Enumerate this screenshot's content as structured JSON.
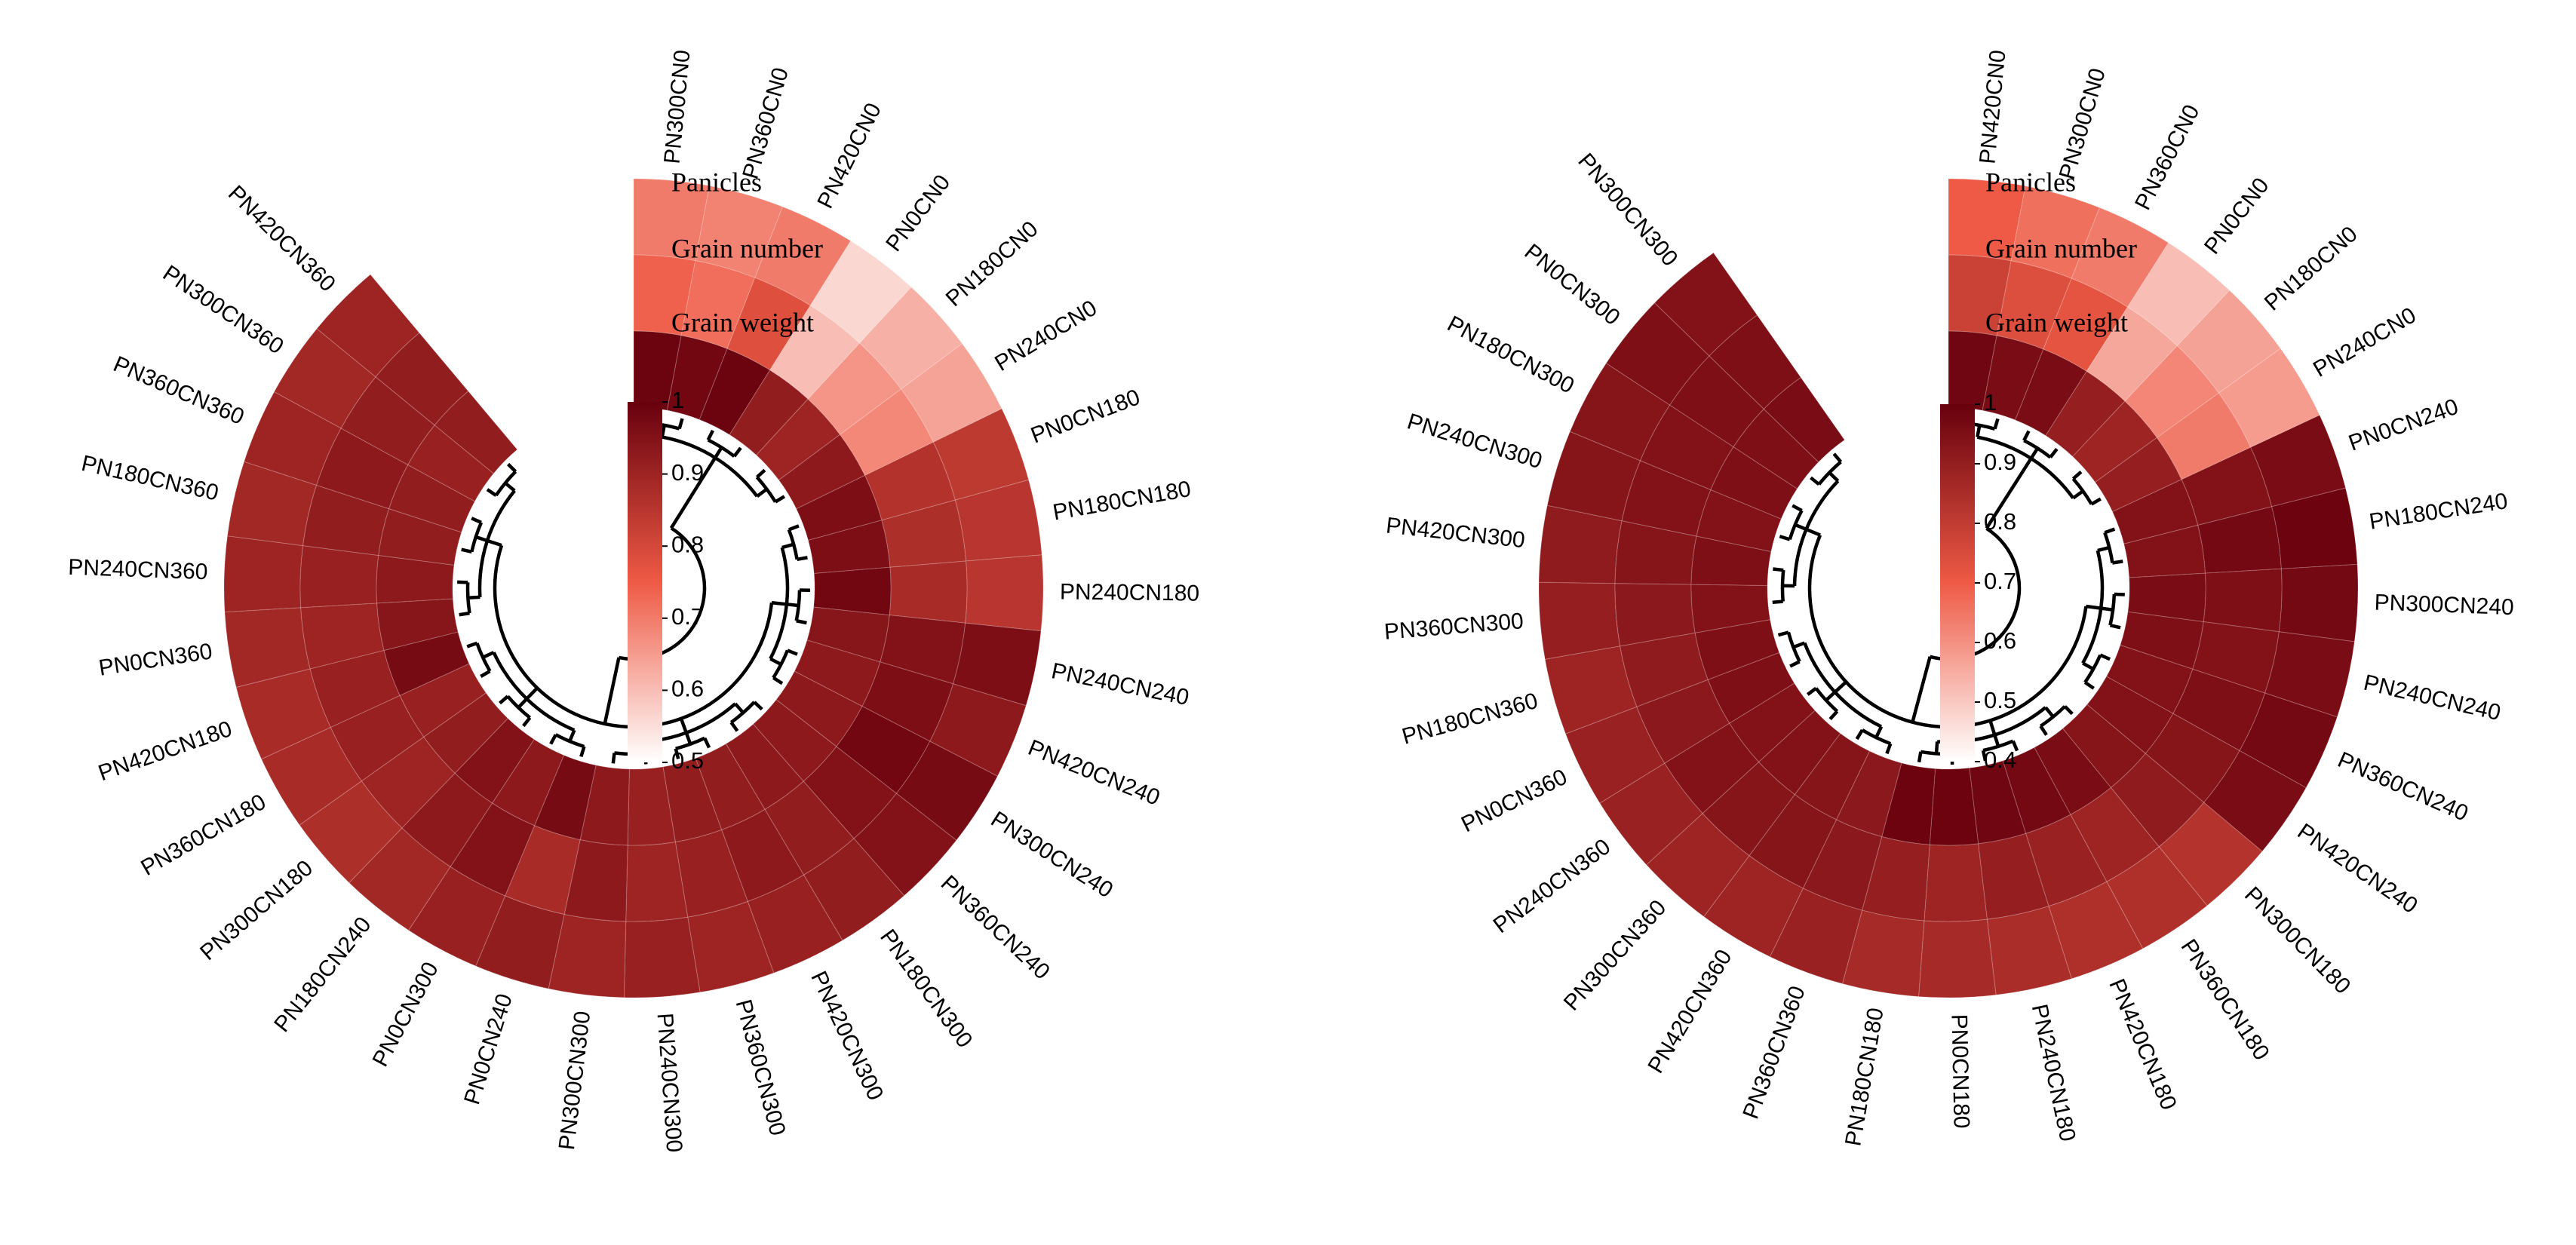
{
  "tracks": [
    "Panicles",
    "Grain number",
    "Grain weight"
  ],
  "colors": {
    "low": "#ffffff",
    "mid": "#ee5a45",
    "high": "#67000d"
  },
  "chart_data": [
    {
      "type": "heatmap",
      "subtype": "circular",
      "title": "",
      "legend": {
        "min": 0.5,
        "max": 1,
        "ticks": [
          "0.5",
          "0.6",
          "0.7",
          "0.8",
          "0.9",
          "1"
        ]
      },
      "samples": [
        "PN300CN0",
        "PN360CN0",
        "PN420CN0",
        "PN0CN0",
        "PN180CN0",
        "PN240CN0",
        "PN0CN180",
        "PN180CN180",
        "PN240CN180",
        "PN240CN240",
        "PN420CN240",
        "PN300CN240",
        "PN360CN240",
        "PN180CN300",
        "PN420CN300",
        "PN360CN300",
        "PN240CN300",
        "PN300CN300",
        "PN0CN240",
        "PN0CN300",
        "PN180CN240",
        "PN300CN180",
        "PN360CN180",
        "PN420CN180",
        "PN0CN360",
        "PN240CN360",
        "PN180CN360",
        "PN360CN360",
        "PN300CN360",
        "PN420CN360"
      ],
      "series": [
        {
          "name": "Panicles",
          "values": [
            0.7,
            0.69,
            0.7,
            0.56,
            0.62,
            0.64,
            0.84,
            0.85,
            0.85,
            0.96,
            0.93,
            0.97,
            0.95,
            0.92,
            0.91,
            0.9,
            0.91,
            0.9,
            0.92,
            0.91,
            0.89,
            0.87,
            0.88,
            0.88,
            0.89,
            0.9,
            0.89,
            0.9,
            0.89,
            0.9
          ]
        },
        {
          "name": "Grain number",
          "values": [
            0.74,
            0.72,
            0.78,
            0.6,
            0.66,
            0.68,
            0.86,
            0.87,
            0.88,
            0.95,
            0.96,
            0.98,
            0.95,
            0.92,
            0.93,
            0.91,
            0.9,
            0.93,
            0.88,
            0.95,
            0.93,
            0.9,
            0.91,
            0.91,
            0.9,
            0.91,
            0.92,
            0.93,
            0.92,
            0.92
          ]
        },
        {
          "name": "Grain weight",
          "values": [
            0.99,
            0.98,
            0.99,
            0.92,
            0.9,
            0.93,
            0.96,
            0.96,
            0.98,
            0.94,
            0.93,
            0.93,
            0.93,
            0.93,
            0.92,
            0.92,
            0.91,
            0.93,
            0.97,
            0.93,
            0.95,
            0.92,
            0.91,
            0.97,
            0.94,
            0.93,
            0.92,
            0.92,
            0.91,
            0.92
          ]
        }
      ]
    },
    {
      "type": "heatmap",
      "subtype": "circular",
      "title": "",
      "legend": {
        "min": 0.4,
        "max": 1,
        "ticks": [
          "0.4",
          "0.5",
          "0.6",
          "0.7",
          "0.8",
          "0.9",
          "1"
        ]
      },
      "samples": [
        "PN420CN0",
        "PN300CN0",
        "PN360CN0",
        "PN0CN0",
        "PN180CN0",
        "PN240CN0",
        "PN0CN240",
        "PN180CN240",
        "PN300CN240",
        "PN240CN240",
        "PN360CN240",
        "PN420CN240",
        "PN300CN180",
        "PN360CN180",
        "PN420CN180",
        "PN240CN180",
        "PN0CN180",
        "PN180CN180",
        "PN360CN360",
        "PN420CN360",
        "PN300CN360",
        "PN240CN360",
        "PN0CN360",
        "PN180CN360",
        "PN360CN300",
        "PN420CN300",
        "PN240CN300",
        "PN180CN300",
        "PN0CN300",
        "PN300CN300"
      ],
      "series": [
        {
          "name": "Panicles",
          "values": [
            0.7,
            0.66,
            0.64,
            0.52,
            0.57,
            0.58,
            0.96,
            0.99,
            0.97,
            0.96,
            0.97,
            0.96,
            0.83,
            0.84,
            0.84,
            0.85,
            0.86,
            0.86,
            0.89,
            0.88,
            0.88,
            0.89,
            0.89,
            0.88,
            0.9,
            0.91,
            0.93,
            0.93,
            0.95,
            0.94
          ]
        },
        {
          "name": "Grain number",
          "values": [
            0.78,
            0.74,
            0.72,
            0.56,
            0.62,
            0.64,
            0.94,
            0.97,
            0.95,
            0.94,
            0.95,
            0.93,
            0.91,
            0.88,
            0.89,
            0.9,
            0.88,
            0.9,
            0.92,
            0.93,
            0.93,
            0.94,
            0.92,
            0.91,
            0.92,
            0.93,
            0.94,
            0.94,
            0.95,
            0.95
          ]
        },
        {
          "name": "Grain weight",
          "values": [
            0.98,
            0.96,
            0.96,
            0.9,
            0.88,
            0.9,
            0.94,
            0.94,
            0.96,
            0.95,
            0.94,
            0.94,
            0.93,
            0.96,
            0.97,
            0.98,
            0.99,
            0.99,
            0.92,
            0.93,
            0.94,
            0.94,
            0.95,
            0.95,
            0.94,
            0.95,
            0.94,
            0.95,
            0.95,
            0.96
          ]
        }
      ]
    }
  ]
}
